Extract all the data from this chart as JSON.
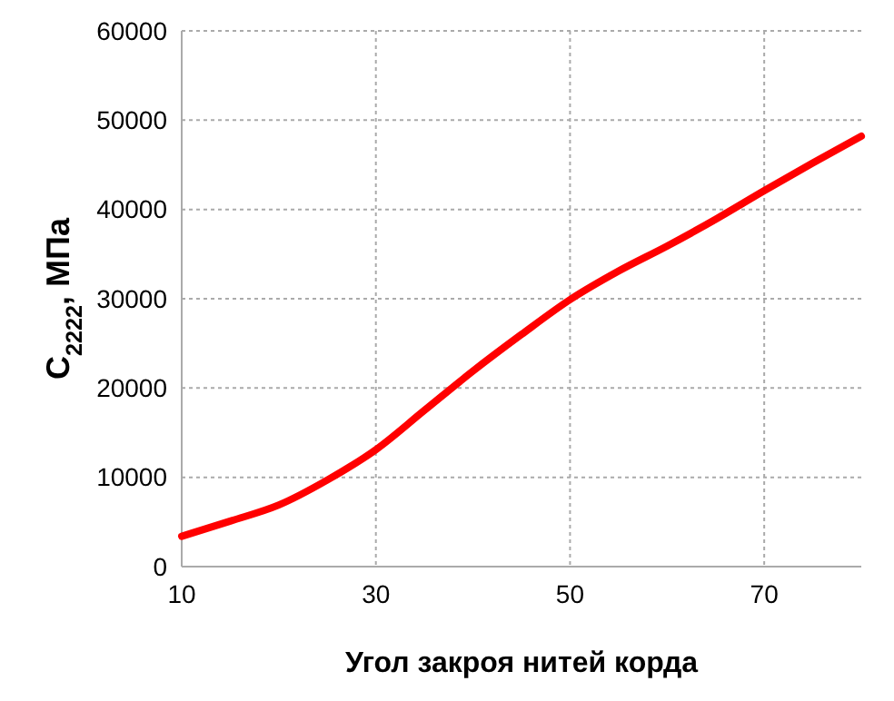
{
  "chart_data": {
    "type": "line",
    "xlabel": "Угол закроя нитей корда",
    "ylabel": "C$_{2222}$, МПа",
    "x": [
      10,
      15,
      20,
      25,
      30,
      35,
      40,
      45,
      50,
      55,
      60,
      65,
      70,
      75,
      80
    ],
    "series": [
      {
        "color": "#ff0000",
        "values": [
          3400,
          5100,
          6900,
          9700,
          13100,
          17500,
          21900,
          26000,
          29900,
          33100,
          35900,
          38900,
          42100,
          45200,
          48200
        ]
      }
    ],
    "xlim": [
      10,
      80
    ],
    "xticks": [
      10,
      30,
      50,
      70
    ],
    "ylim": [
      0,
      60000
    ],
    "yticks": [
      0,
      10000,
      20000,
      30000,
      40000,
      50000,
      60000
    ],
    "grid": true,
    "marker": "none",
    "line_style": "solid"
  }
}
